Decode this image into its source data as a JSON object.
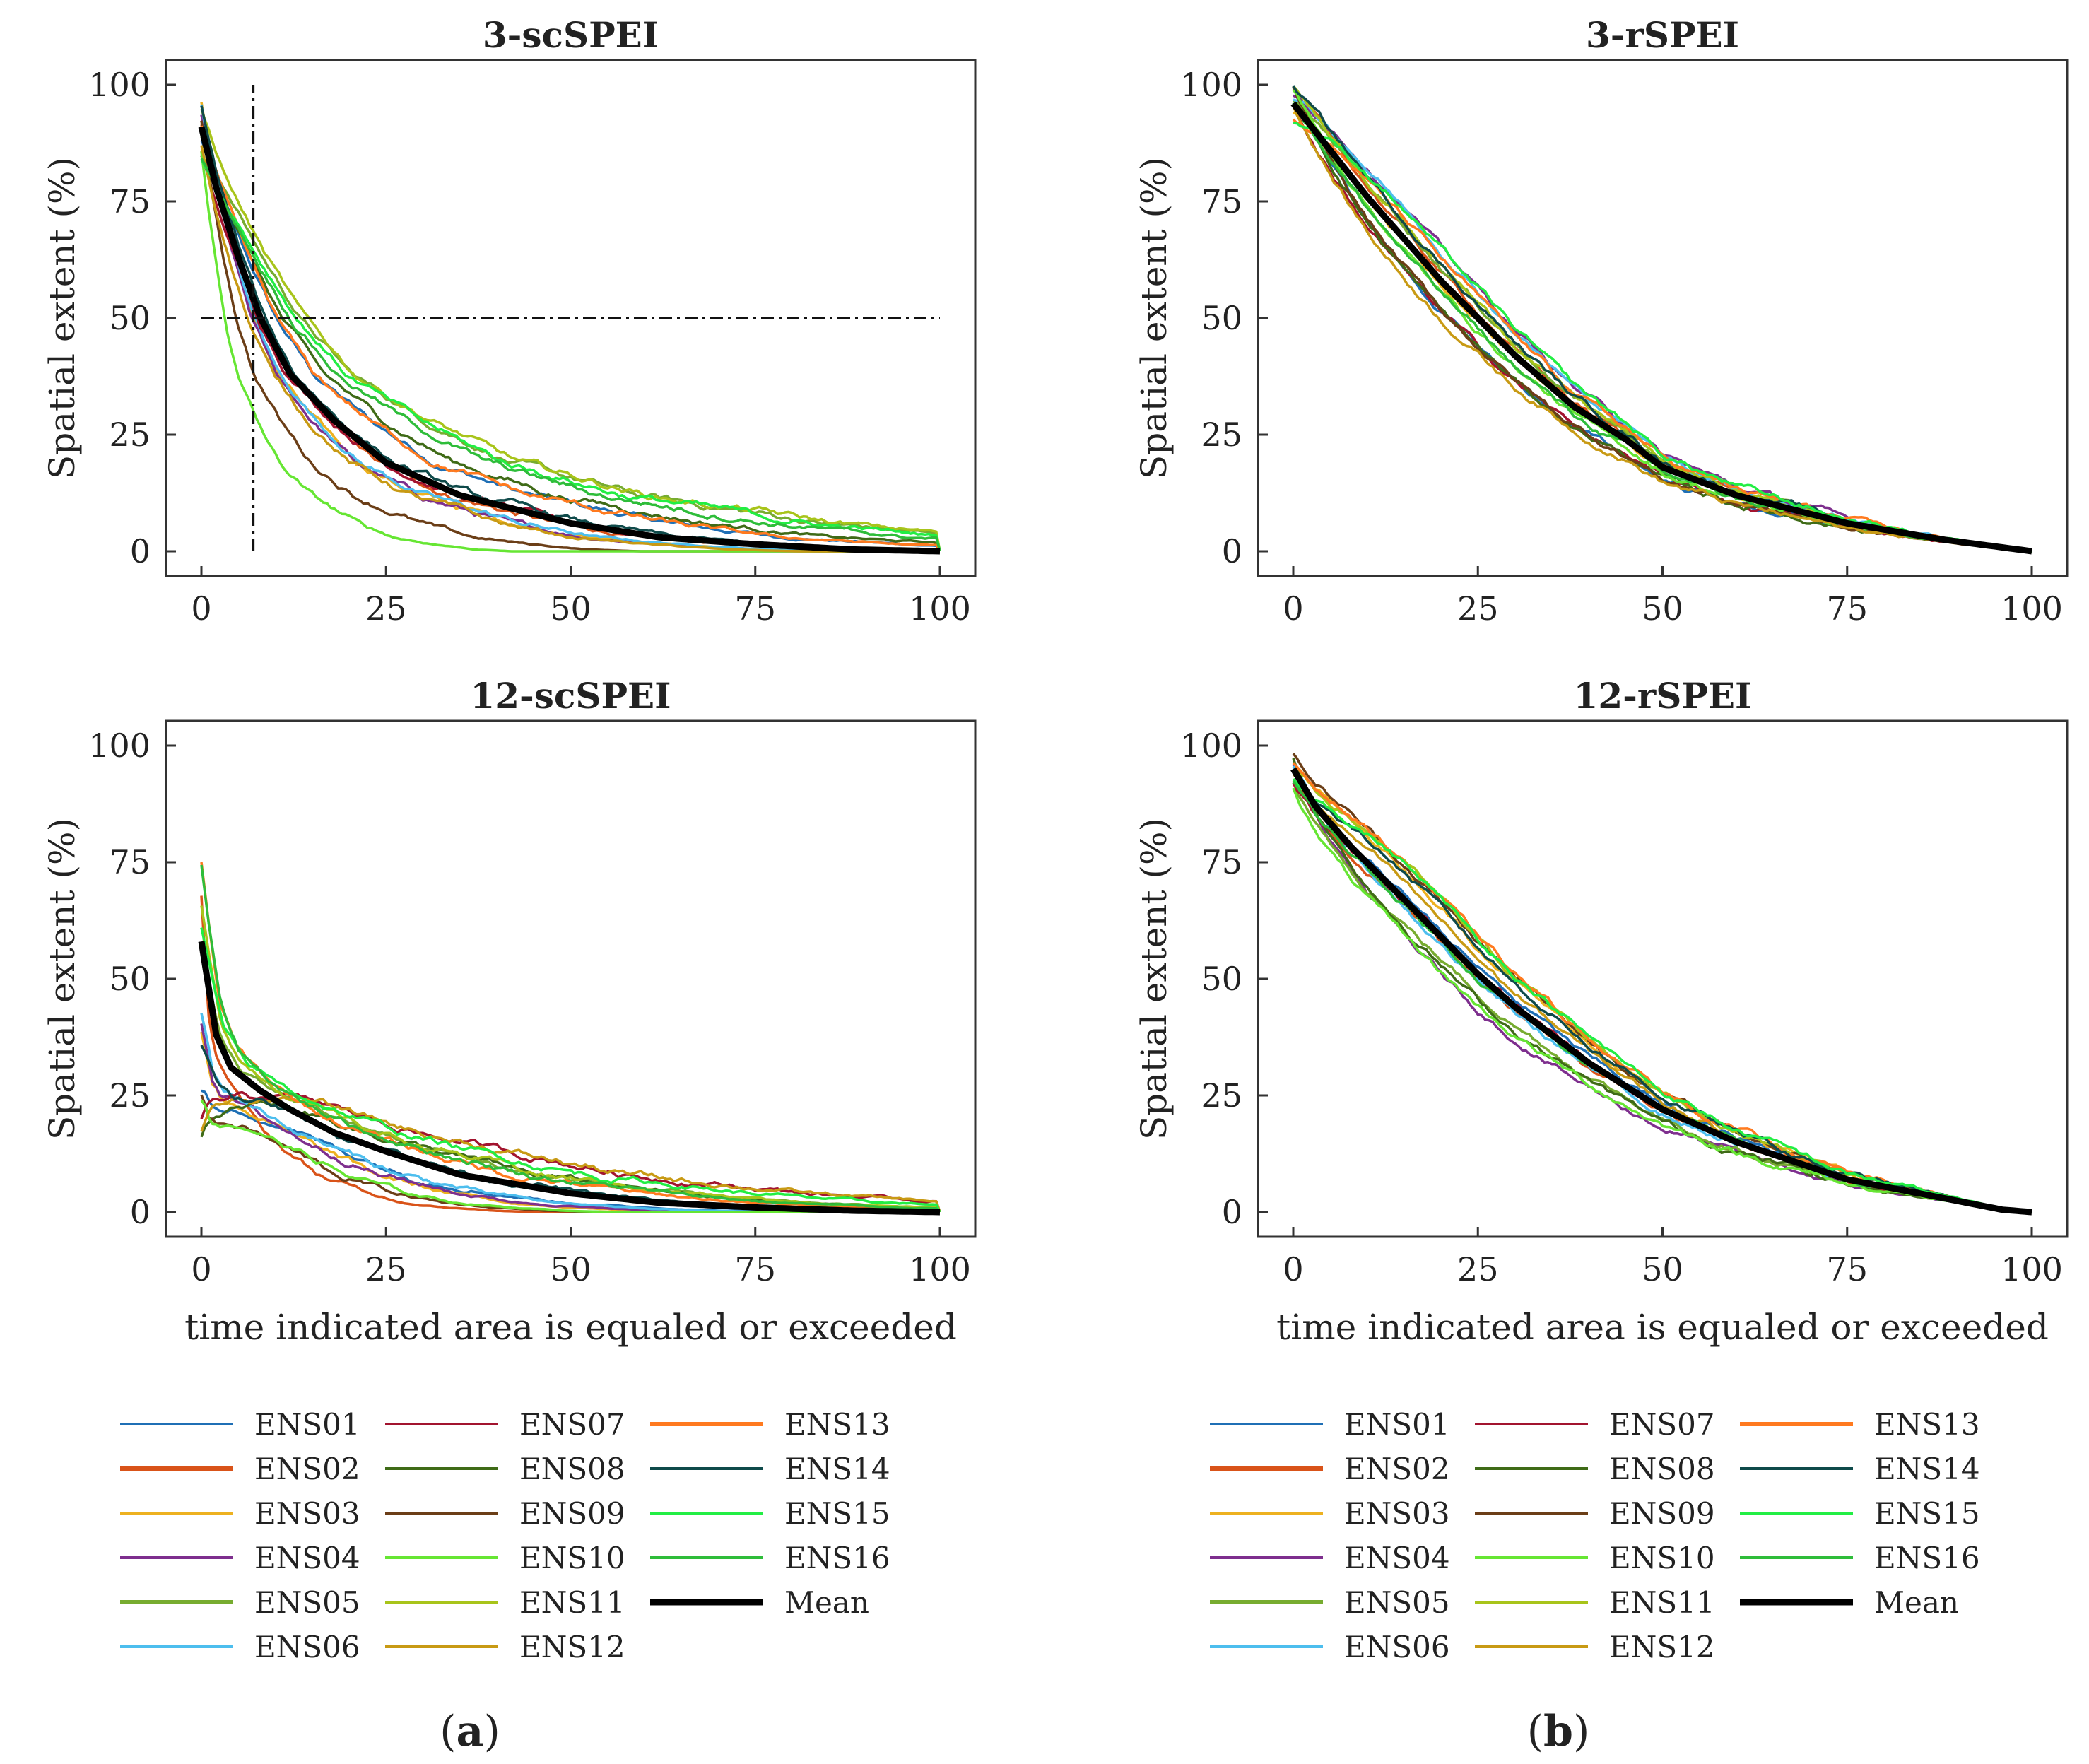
{
  "panel_labels": [
    {
      "prefix": "(",
      "letter": "a",
      "suffix": ")"
    },
    {
      "prefix": "(",
      "letter": "b",
      "suffix": ")"
    }
  ],
  "chart_data": [
    {
      "type": "line",
      "title": "3-scSPEI",
      "xlabel": "",
      "ylabel": "Spatial extent (%)",
      "xlim": [
        0,
        100
      ],
      "ylim": [
        0,
        100
      ],
      "xticks": [
        0,
        25,
        50,
        75,
        100
      ],
      "yticks": [
        0,
        25,
        50,
        75,
        100
      ],
      "ref_lines": {
        "horizontal_y": 50,
        "horizontal_x_range": [
          0,
          100
        ],
        "vertical_x": 7,
        "vertical_y_range": [
          0,
          100
        ]
      },
      "mean_points": [
        [
          0,
          91
        ],
        [
          2,
          78
        ],
        [
          5,
          63
        ],
        [
          8,
          50
        ],
        [
          12,
          38
        ],
        [
          18,
          28
        ],
        [
          25,
          19
        ],
        [
          35,
          12
        ],
        [
          50,
          6
        ],
        [
          62,
          3
        ],
        [
          75,
          1.5
        ],
        [
          88,
          0.4
        ],
        [
          100,
          0
        ]
      ],
      "members_profile": "concave-fast",
      "member_start_range": [
        84,
        97
      ]
    },
    {
      "type": "line",
      "title": "3-rSPEI",
      "xlabel": "",
      "ylabel": "Spatial extent (%)",
      "xlim": [
        0,
        100
      ],
      "ylim": [
        0,
        100
      ],
      "xticks": [
        0,
        25,
        50,
        75,
        100
      ],
      "yticks": [
        0,
        25,
        50,
        75,
        100
      ],
      "mean_points": [
        [
          0,
          96
        ],
        [
          5,
          86
        ],
        [
          10,
          76
        ],
        [
          15,
          67
        ],
        [
          20,
          58
        ],
        [
          25,
          50
        ],
        [
          30,
          42
        ],
        [
          38,
          31
        ],
        [
          45,
          24
        ],
        [
          50,
          18
        ],
        [
          60,
          12
        ],
        [
          75,
          6
        ],
        [
          88,
          2.5
        ],
        [
          100,
          0
        ]
      ],
      "members_profile": "concave-slow",
      "member_start_range": [
        92,
        100
      ]
    },
    {
      "type": "line",
      "title": "12-scSPEI",
      "xlabel": "time indicated area is equaled or exceeded",
      "ylabel": "Spatial extent (%)",
      "xlim": [
        0,
        100
      ],
      "ylim": [
        0,
        100
      ],
      "xticks": [
        0,
        25,
        50,
        75,
        100
      ],
      "yticks": [
        0,
        25,
        50,
        75,
        100
      ],
      "mean_points": [
        [
          0,
          58
        ],
        [
          1,
          48
        ],
        [
          2,
          38
        ],
        [
          4,
          31
        ],
        [
          8,
          26
        ],
        [
          12,
          22
        ],
        [
          18,
          17
        ],
        [
          25,
          13
        ],
        [
          35,
          8
        ],
        [
          50,
          4
        ],
        [
          62,
          2
        ],
        [
          75,
          1
        ],
        [
          88,
          0.3
        ],
        [
          100,
          0
        ]
      ],
      "members_profile": "concave-fast",
      "member_start_range": [
        16,
        79
      ]
    },
    {
      "type": "line",
      "title": "12-rSPEI",
      "xlabel": "time indicated area is equaled or exceeded",
      "ylabel": "Spatial extent (%)",
      "xlim": [
        0,
        100
      ],
      "ylim": [
        0,
        100
      ],
      "xticks": [
        0,
        25,
        50,
        75,
        100
      ],
      "yticks": [
        0,
        25,
        50,
        75,
        100
      ],
      "mean_points": [
        [
          0,
          95
        ],
        [
          3,
          87
        ],
        [
          8,
          78
        ],
        [
          15,
          67
        ],
        [
          20,
          59
        ],
        [
          25,
          51
        ],
        [
          30,
          44
        ],
        [
          40,
          32
        ],
        [
          50,
          22
        ],
        [
          60,
          15
        ],
        [
          75,
          7
        ],
        [
          88,
          3
        ],
        [
          96,
          0.5
        ],
        [
          100,
          0
        ]
      ],
      "members_profile": "concave-slow",
      "member_start_range": [
        85,
        99
      ]
    }
  ],
  "legend": [
    {
      "label": "ENS01",
      "color": "#1f6fb5"
    },
    {
      "label": "ENS02",
      "color": "#d95319"
    },
    {
      "label": "ENS03",
      "color": "#edb120"
    },
    {
      "label": "ENS04",
      "color": "#7e2f8e"
    },
    {
      "label": "ENS05",
      "color": "#77ac30"
    },
    {
      "label": "ENS06",
      "color": "#4dbeee"
    },
    {
      "label": "ENS07",
      "color": "#a2142f"
    },
    {
      "label": "ENS08",
      "color": "#3f6b17"
    },
    {
      "label": "ENS09",
      "color": "#6b3e17"
    },
    {
      "label": "ENS10",
      "color": "#66e633"
    },
    {
      "label": "ENS11",
      "color": "#a8c41a"
    },
    {
      "label": "ENS12",
      "color": "#c89a14"
    },
    {
      "label": "ENS13",
      "color": "#ff7a1f"
    },
    {
      "label": "ENS14",
      "color": "#0f4a4a"
    },
    {
      "label": "ENS15",
      "color": "#22ee44"
    },
    {
      "label": "ENS16",
      "color": "#2ebd3a"
    },
    {
      "label": "Mean",
      "color": "#000000"
    }
  ]
}
